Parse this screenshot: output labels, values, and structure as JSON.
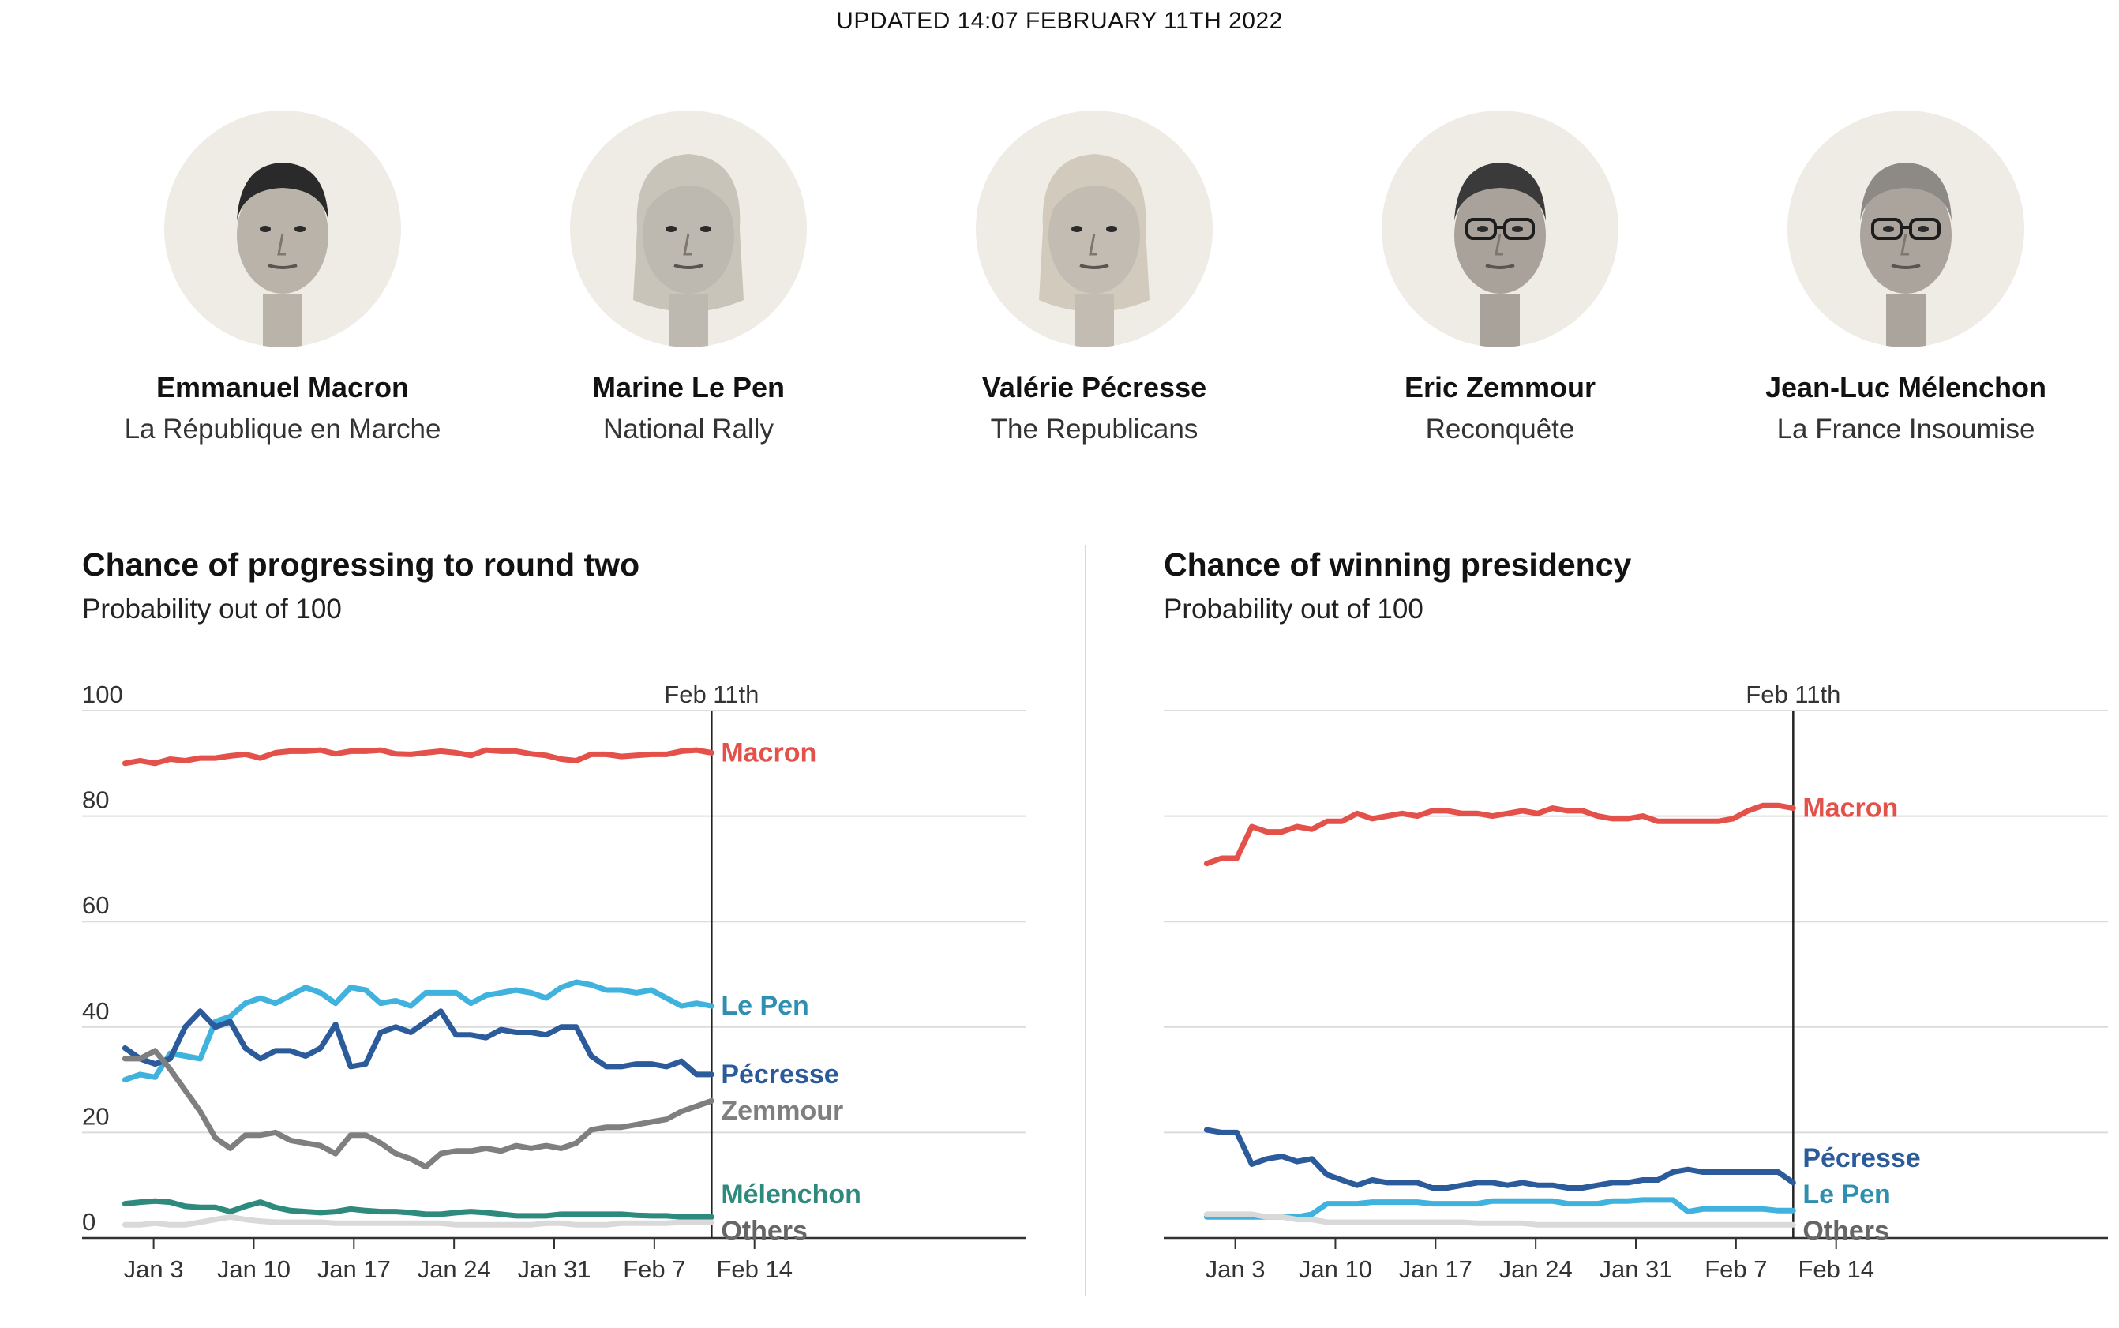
{
  "header": {
    "updated": "UPDATED 14:07 FEBRUARY 11TH 2022"
  },
  "candidates": [
    {
      "name": "Emmanuel Macron",
      "party": "La République en Marche",
      "portrait": "macron-portrait"
    },
    {
      "name": "Marine Le Pen",
      "party": "National Rally",
      "portrait": "lepen-portrait"
    },
    {
      "name": "Valérie Pécresse",
      "party": "The Republicans",
      "portrait": "pecresse-portrait"
    },
    {
      "name": "Eric Zemmour",
      "party": "Reconquête",
      "portrait": "zemmour-portrait"
    },
    {
      "name": "Jean-Luc Mélenchon",
      "party": "La France Insoumise",
      "portrait": "melenchon-portrait"
    }
  ],
  "colors": {
    "macron": "#e3514a",
    "lepen": "#3fb2dd",
    "pecresse": "#2b5b9a",
    "zemmour": "#7f7f7f",
    "melenchon": "#2e8a7d",
    "others": "#d9d9d9",
    "others_label": "#666666",
    "lepen_label": "#2f8fb0"
  },
  "chart_data": [
    {
      "type": "line",
      "title": "Chance of progressing to round two",
      "subtitle": "Probability out of 100",
      "ylim": [
        0,
        100
      ],
      "yticks": [
        0,
        20,
        40,
        60,
        80,
        100
      ],
      "yticklabels": [
        "0",
        "20",
        "40",
        "60",
        "80",
        "100"
      ],
      "xlim": [
        "2021-12-29",
        "2022-03-05"
      ],
      "xticks": [
        "2022-01-03",
        "2022-01-10",
        "2022-01-17",
        "2022-01-24",
        "2022-01-31",
        "2022-02-07",
        "2022-02-14"
      ],
      "xticklabels": [
        "Jan 3",
        "Jan 10",
        "Jan 17",
        "Jan 24",
        "Jan 31",
        "Feb 7",
        "Feb 14"
      ],
      "marker_date": "2022-02-11",
      "marker_label": "Feb 11th",
      "start_date": "2022-01-01",
      "series": [
        {
          "name": "Macron",
          "key": "macron",
          "label": "Macron",
          "values": [
            90,
            90.5,
            90,
            90.8,
            90.5,
            91,
            91,
            91.4,
            91.7,
            91,
            92,
            92.3,
            92.3,
            92.5,
            91.8,
            92.3,
            92.3,
            92.5,
            91.8,
            91.7,
            92,
            92.3,
            92,
            91.5,
            92.5,
            92.3,
            92.3,
            91.8,
            91.5,
            90.8,
            90.5,
            91.7,
            91.7,
            91.3,
            91.5,
            91.7,
            91.7,
            92.3,
            92.5,
            92
          ]
        },
        {
          "name": "Le Pen",
          "key": "lepen",
          "label": "Le Pen",
          "labelKey": "lepen_label",
          "values": [
            30,
            31,
            30.5,
            35,
            34.5,
            34,
            41,
            42,
            44.5,
            45.5,
            44.5,
            46,
            47.5,
            46.5,
            44.5,
            47.5,
            47,
            44.5,
            45,
            44,
            46.5,
            46.5,
            46.5,
            44.5,
            46,
            46.5,
            47,
            46.5,
            45.5,
            47.5,
            48.5,
            48,
            47,
            47,
            46.5,
            47,
            45.5,
            44,
            44.5,
            44
          ]
        },
        {
          "name": "Pécresse",
          "key": "pecresse",
          "label": "Pécresse",
          "values": [
            36,
            34,
            33,
            34,
            40,
            43,
            40,
            41,
            36,
            34,
            35.5,
            35.5,
            34.5,
            36,
            40.5,
            32.5,
            33,
            39,
            40,
            39,
            41,
            43,
            38.5,
            38.5,
            38,
            39.5,
            39,
            39,
            38.5,
            40,
            40,
            34.5,
            32.5,
            32.5,
            33,
            33,
            32.5,
            33.5,
            31,
            31
          ]
        },
        {
          "name": "Zemmour",
          "key": "zemmour",
          "label": "Zemmour",
          "values": [
            34,
            34,
            35.5,
            32,
            28,
            24,
            19,
            17,
            19.5,
            19.5,
            20,
            18.5,
            18,
            17.5,
            16,
            19.5,
            19.5,
            18,
            16,
            15,
            13.5,
            16,
            16.5,
            16.5,
            17,
            16.5,
            17.5,
            17,
            17.5,
            17,
            18,
            20.5,
            21,
            21,
            21.5,
            22,
            22.5,
            24,
            25,
            26
          ]
        },
        {
          "name": "Mélenchon",
          "key": "melenchon",
          "label": "Mélenchon",
          "values": [
            6.5,
            6.8,
            7,
            6.8,
            6,
            5.8,
            5.8,
            5,
            6,
            6.8,
            5.8,
            5.2,
            5,
            4.8,
            5,
            5.5,
            5.2,
            5,
            5,
            4.8,
            4.5,
            4.5,
            4.8,
            5,
            4.8,
            4.5,
            4.2,
            4.2,
            4.2,
            4.5,
            4.5,
            4.5,
            4.5,
            4.5,
            4.3,
            4.2,
            4.2,
            4,
            4,
            4
          ]
        },
        {
          "name": "Others",
          "key": "others",
          "label": "Others",
          "labelKey": "others_label",
          "values": [
            2.5,
            2.5,
            2.8,
            2.5,
            2.5,
            3,
            3.5,
            4,
            3.5,
            3.2,
            3,
            3,
            3,
            3,
            2.8,
            2.8,
            2.8,
            2.8,
            2.8,
            2.8,
            2.8,
            2.8,
            2.5,
            2.5,
            2.5,
            2.5,
            2.5,
            2.5,
            2.8,
            2.8,
            2.5,
            2.5,
            2.5,
            2.8,
            2.8,
            2.8,
            2.8,
            3,
            3,
            3
          ]
        }
      ]
    },
    {
      "type": "line",
      "title": "Chance of winning presidency",
      "subtitle": "Probability out of 100",
      "ylim": [
        0,
        100
      ],
      "yticks": [
        0,
        20,
        40,
        60,
        80,
        100
      ],
      "yticklabels": [],
      "xlim": [
        "2021-12-29",
        "2022-03-05"
      ],
      "xticks": [
        "2022-01-03",
        "2022-01-10",
        "2022-01-17",
        "2022-01-24",
        "2022-01-31",
        "2022-02-07",
        "2022-02-14"
      ],
      "xticklabels": [
        "Jan 3",
        "Jan 10",
        "Jan 17",
        "Jan 24",
        "Jan 31",
        "Feb 7",
        "Feb 14"
      ],
      "marker_date": "2022-02-11",
      "marker_label": "Feb 11th",
      "start_date": "2022-01-01",
      "series": [
        {
          "name": "Macron",
          "key": "macron",
          "label": "Macron",
          "values": [
            71,
            72,
            72,
            78,
            77,
            77,
            78,
            77.5,
            79,
            79,
            80.5,
            79.5,
            80,
            80.5,
            80,
            81,
            81,
            80.5,
            80.5,
            80,
            80.5,
            81,
            80.5,
            81.5,
            81,
            81,
            80,
            79.5,
            79.5,
            80,
            79,
            79,
            79,
            79,
            79,
            79.5,
            81,
            82,
            82,
            81.5
          ]
        },
        {
          "name": "Pécresse",
          "key": "pecresse",
          "label": "Pécresse",
          "values": [
            20.5,
            20,
            20,
            14,
            15,
            15.5,
            14.5,
            15,
            12,
            11,
            10,
            11,
            10.5,
            10.5,
            10.5,
            9.5,
            9.5,
            10,
            10.5,
            10.5,
            10,
            10.5,
            10,
            10,
            9.5,
            9.5,
            10,
            10.5,
            10.5,
            11,
            11,
            12.5,
            13,
            12.5,
            12.5,
            12.5,
            12.5,
            12.5,
            12.5,
            10.5
          ]
        },
        {
          "name": "Le Pen",
          "key": "lepen",
          "label": "Le Pen",
          "labelKey": "lepen_label",
          "values": [
            4,
            4,
            4,
            4,
            4,
            4,
            4,
            4.5,
            6.5,
            6.5,
            6.5,
            6.8,
            6.8,
            6.8,
            6.8,
            6.5,
            6.5,
            6.5,
            6.5,
            7,
            7,
            7,
            7,
            7,
            6.5,
            6.5,
            6.5,
            7,
            7,
            7.2,
            7.2,
            7.2,
            5,
            5.5,
            5.5,
            5.5,
            5.5,
            5.5,
            5.2,
            5.2
          ]
        },
        {
          "name": "Others",
          "key": "others",
          "label": "Others",
          "labelKey": "others_label",
          "values": [
            4.5,
            4.5,
            4.5,
            4.5,
            4,
            4,
            3.5,
            3.5,
            3,
            3,
            3,
            3,
            3,
            3,
            3,
            3,
            3,
            3,
            2.8,
            2.8,
            2.8,
            2.8,
            2.5,
            2.5,
            2.5,
            2.5,
            2.5,
            2.5,
            2.5,
            2.5,
            2.5,
            2.5,
            2.5,
            2.5,
            2.5,
            2.5,
            2.5,
            2.5,
            2.5,
            2.5
          ]
        }
      ]
    }
  ]
}
